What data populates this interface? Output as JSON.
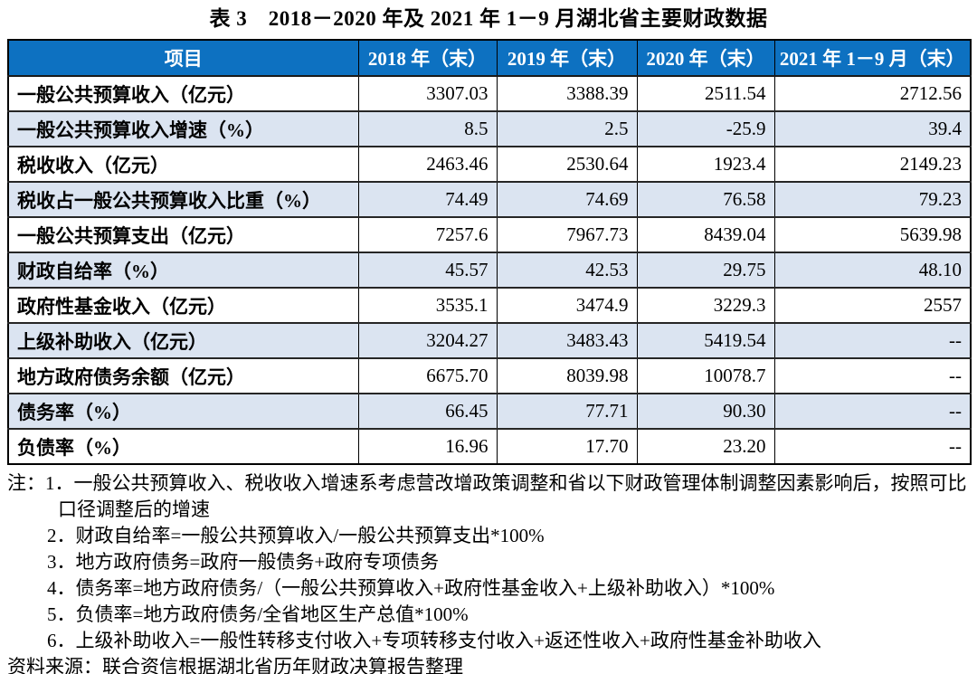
{
  "title": "表 3　2018－2020 年及 2021 年 1－9 月湖北省主要财政数据",
  "table": {
    "headers": [
      "项目",
      "2018 年（末）",
      "2019 年（末）",
      "2020 年（末）",
      "2021 年 1－9 月（末）"
    ],
    "rows": [
      {
        "label": "一般公共预算收入（亿元）",
        "values": [
          "3307.03",
          "3388.39",
          "2511.54",
          "2712.56"
        ]
      },
      {
        "label": "一般公共预算收入增速（%）",
        "values": [
          "8.5",
          "2.5",
          "-25.9",
          "39.4"
        ]
      },
      {
        "label": "税收收入（亿元）",
        "values": [
          "2463.46",
          "2530.64",
          "1923.4",
          "2149.23"
        ]
      },
      {
        "label": "税收占一般公共预算收入比重（%）",
        "values": [
          "74.49",
          "74.69",
          "76.58",
          "79.23"
        ]
      },
      {
        "label": "一般公共预算支出（亿元）",
        "values": [
          "7257.6",
          "7967.73",
          "8439.04",
          "5639.98"
        ]
      },
      {
        "label": "财政自给率（%）",
        "values": [
          "45.57",
          "42.53",
          "29.75",
          "48.10"
        ]
      },
      {
        "label": "政府性基金收入（亿元）",
        "values": [
          "3535.1",
          "3474.9",
          "3229.3",
          "2557"
        ]
      },
      {
        "label": "上级补助收入（亿元）",
        "values": [
          "3204.27",
          "3483.43",
          "5419.54",
          "--"
        ]
      },
      {
        "label": "地方政府债务余额（亿元）",
        "values": [
          "6675.70",
          "8039.98",
          "10078.7",
          "--"
        ]
      },
      {
        "label": "债务率（%）",
        "values": [
          "66.45",
          "77.71",
          "90.30",
          "--"
        ]
      },
      {
        "label": "负债率（%）",
        "values": [
          "16.96",
          "17.70",
          "23.20",
          "--"
        ]
      }
    ]
  },
  "notes": {
    "prefix": "注：",
    "items": [
      "1．一般公共预算收入、税收收入增速系考虑营改增政策调整和省以下财政管理体制调整因素影响后，按照可比口径调整后的增速",
      "2．财政自给率=一般公共预算收入/一般公共预算支出*100%",
      "3．地方政府债务=政府一般债务+政府专项债务",
      "4．债务率=地方政府债务/（一般公共预算收入+政府性基金收入+上级补助收入）*100%",
      "5．负债率=地方政府债务/全省地区生产总值*100%",
      "6．上级补助收入=一般性转移支付收入+专项转移支付收入+返还性收入+政府性基金补助收入"
    ],
    "source": "资料来源：联合资信根据湖北省历年财政决算报告整理"
  },
  "colors": {
    "header_bg": "#0d71c1",
    "header_text": "#ffffff",
    "row_alt_bg": "#dbe4f1",
    "border": "#000000"
  }
}
